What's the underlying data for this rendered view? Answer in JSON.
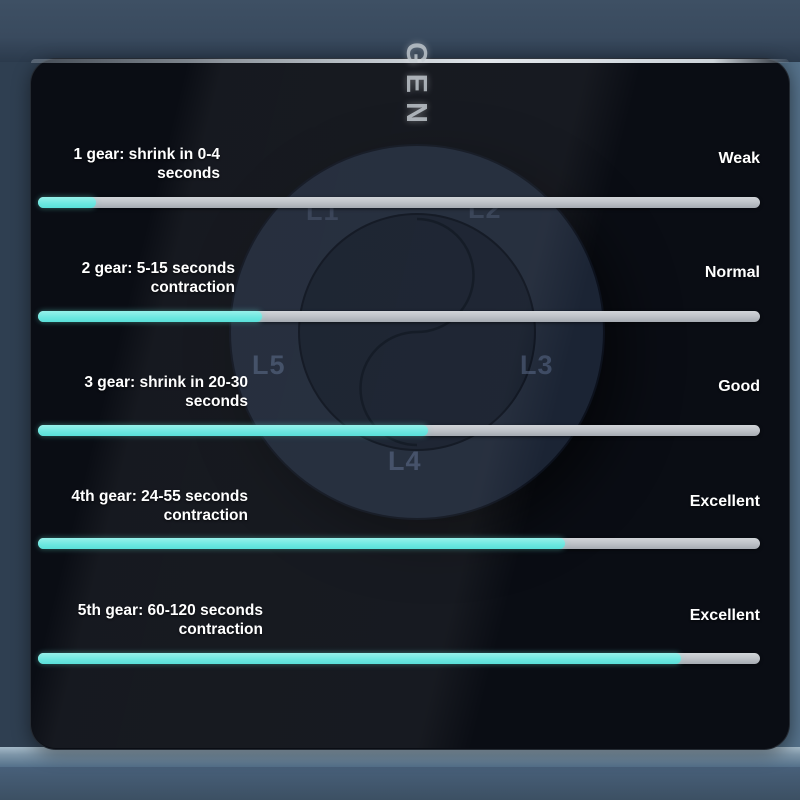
{
  "panel": {
    "brand_vertical_text": "GEN",
    "dial_labels": [
      "L1",
      "L2",
      "L3",
      "L4",
      "L5"
    ]
  },
  "rows": [
    {
      "lines": [
        "1 gear: shrink in 0-4",
        "seconds"
      ],
      "rating": "Weak",
      "percent": 8
    },
    {
      "lines": [
        "2 gear: 5-15 seconds",
        "contraction"
      ],
      "rating": "Normal",
      "percent": 31
    },
    {
      "lines": [
        "3 gear: shrink in 20-30",
        "seconds"
      ],
      "rating": "Good",
      "percent": 54
    },
    {
      "lines": [
        "4th gear: 24-55 seconds",
        "contraction"
      ],
      "rating": "Excellent",
      "percent": 73
    },
    {
      "lines": [
        "5th gear: 60-120 seconds",
        "contraction"
      ],
      "rating": "Excellent",
      "percent": 89
    }
  ],
  "colors": {
    "accent_cyan": "#6fe8e1",
    "track_gray": "#c3c7cc",
    "panel_bg": "#0a0d14",
    "backdrop_blue": "#3a4b5f"
  }
}
